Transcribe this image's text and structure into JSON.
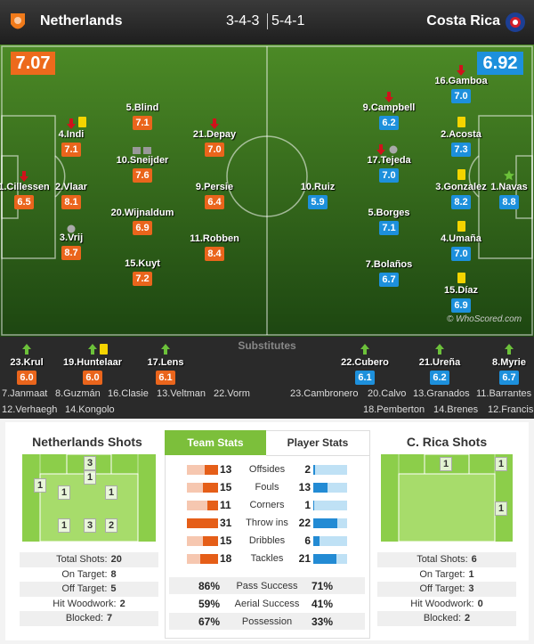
{
  "header": {
    "home_team": "Netherlands",
    "home_formation": "3-4-3",
    "away_formation": "5-4-1",
    "away_team": "Costa Rica"
  },
  "ratings": {
    "home": "7.07",
    "away": "6.92"
  },
  "home_players": [
    {
      "name": "1.Cillessen",
      "rating": "6.5"
    },
    {
      "name": "2.Vlaar",
      "rating": "8.1"
    },
    {
      "name": "3.Vrij",
      "rating": "8.7"
    },
    {
      "name": "4.Indi",
      "rating": "7.1"
    },
    {
      "name": "5.Blind",
      "rating": "7.1"
    },
    {
      "name": "10.Sneijder",
      "rating": "7.6"
    },
    {
      "name": "20.Wijnaldum",
      "rating": "6.9"
    },
    {
      "name": "15.Kuyt",
      "rating": "7.2"
    },
    {
      "name": "21.Depay",
      "rating": "7.0"
    },
    {
      "name": "9.Persie",
      "rating": "6.4"
    },
    {
      "name": "11.Robben",
      "rating": "8.4"
    }
  ],
  "away_players": [
    {
      "name": "10.Ruiz",
      "rating": "5.9"
    },
    {
      "name": "9.Campbell",
      "rating": "6.2"
    },
    {
      "name": "17.Tejeda",
      "rating": "7.0"
    },
    {
      "name": "5.Borges",
      "rating": "7.1"
    },
    {
      "name": "7.Bolaños",
      "rating": "6.7"
    },
    {
      "name": "16.Gamboa",
      "rating": "7.0"
    },
    {
      "name": "2.Acosta",
      "rating": "7.3"
    },
    {
      "name": "3.Gonzalez",
      "rating": "8.2"
    },
    {
      "name": "4.Umaña",
      "rating": "7.0"
    },
    {
      "name": "15.Díaz",
      "rating": "6.9"
    },
    {
      "name": "1.Navas",
      "rating": "8.8"
    }
  ],
  "watermark": "© WhoScored.com",
  "substitutes": {
    "title": "Substitutes",
    "home_used": [
      {
        "name": "23.Krul",
        "rating": "6.0"
      },
      {
        "name": "19.Huntelaar",
        "rating": "6.0"
      },
      {
        "name": "17.Lens",
        "rating": "6.1"
      }
    ],
    "away_used": [
      {
        "name": "22.Cubero",
        "rating": "6.1"
      },
      {
        "name": "21.Ureña",
        "rating": "6.2"
      },
      {
        "name": "8.Myrie",
        "rating": "6.7"
      }
    ],
    "home_bench": [
      "7.Janmaat",
      "8.Guzmán",
      "16.Clasie",
      "13.Veltman",
      "22.Vorm",
      "12.Verhaegh",
      "14.Kongolo"
    ],
    "away_bench": [
      "23.Cambronero",
      "20.Calvo",
      "13.Granados",
      "11.Barrantes",
      "18.Pemberton",
      "14.Brenes",
      "12.Francis"
    ]
  },
  "home_shots": {
    "title": "Netherlands Shots",
    "zones": [
      3,
      1,
      1,
      1,
      1,
      1,
      3,
      2
    ],
    "stats": [
      {
        "label": "Total Shots:",
        "value": 20
      },
      {
        "label": "On Target:",
        "value": 8
      },
      {
        "label": "Off Target:",
        "value": 5
      },
      {
        "label": "Hit Woodwork:",
        "value": 2
      },
      {
        "label": "Blocked:",
        "value": 7
      }
    ]
  },
  "tabs": [
    "Team Stats",
    "Player Stats"
  ],
  "team_stats": [
    {
      "label": "Offsides",
      "home": 13,
      "away": 2
    },
    {
      "label": "Fouls",
      "home": 15,
      "away": 13
    },
    {
      "label": "Corners",
      "home": 11,
      "away": 1
    },
    {
      "label": "Throw ins",
      "home": 31,
      "away": 22
    },
    {
      "label": "Dribbles",
      "home": 15,
      "away": 6
    },
    {
      "label": "Tackles",
      "home": 18,
      "away": 21
    }
  ],
  "percent_stats": [
    {
      "label": "Pass Success",
      "home": "86%",
      "away": "71%"
    },
    {
      "label": "Aerial Success",
      "home": "59%",
      "away": "41%"
    },
    {
      "label": "Possession",
      "home": "67%",
      "away": "33%"
    }
  ],
  "away_shots": {
    "title": "C. Rica Shots",
    "zones": [
      1,
      1,
      1
    ],
    "stats": [
      {
        "label": "Total Shots:",
        "value": 6
      },
      {
        "label": "On Target:",
        "value": 1
      },
      {
        "label": "Off Target:",
        "value": 3
      },
      {
        "label": "Hit Woodwork:",
        "value": 0
      },
      {
        "label": "Blocked:",
        "value": 2
      }
    ]
  }
}
